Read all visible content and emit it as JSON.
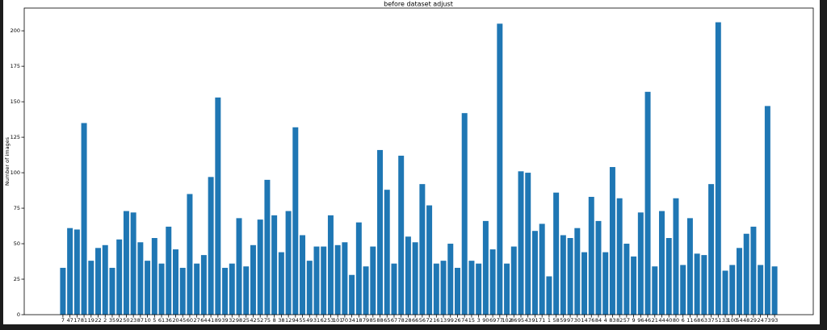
{
  "chart_data": {
    "type": "bar",
    "title": "before dataset adjust",
    "y_label": "Number of images",
    "categories": [
      "7",
      "47",
      "17",
      "81",
      "19",
      "22",
      "2",
      "35",
      "92",
      "50",
      "23",
      "87",
      "10",
      "5",
      "61",
      "36",
      "20",
      "45",
      "60",
      "27",
      "64",
      "41",
      "89",
      "39",
      "32",
      "98",
      "25",
      "42",
      "52",
      "75",
      "8",
      "38",
      "12",
      "94",
      "55",
      "49",
      "31",
      "62",
      "53",
      "101",
      "70",
      "34",
      "18",
      "79",
      "85",
      "88",
      "65",
      "67",
      "78",
      "28",
      "66",
      "56",
      "72",
      "16",
      "13",
      "99",
      "26",
      "74",
      "15",
      "3",
      "90",
      "69",
      "77",
      "102",
      "86",
      "95",
      "43",
      "91",
      "71",
      "1",
      "58",
      "59",
      "97",
      "30",
      "14",
      "76",
      "84",
      "4",
      "83",
      "82",
      "57",
      "9",
      "96",
      "46",
      "21",
      "44",
      "40",
      "80",
      "6",
      "11",
      "68",
      "63",
      "37",
      "51",
      "33",
      "100",
      "54",
      "48",
      "29",
      "24",
      "73",
      "93"
    ],
    "values": [
      33,
      61,
      60,
      135,
      38,
      47,
      49,
      33,
      53,
      73,
      72,
      51,
      38,
      54,
      36,
      62,
      46,
      33,
      85,
      36,
      42,
      97,
      153,
      33,
      36,
      68,
      34,
      49,
      67,
      95,
      70,
      44,
      73,
      132,
      56,
      38,
      48,
      48,
      70,
      49,
      51,
      28,
      65,
      34,
      48,
      116,
      88,
      36,
      112,
      55,
      51,
      92,
      77,
      36,
      38,
      50,
      33,
      142,
      38,
      36,
      66,
      46,
      205,
      36,
      48,
      101,
      100,
      59,
      64,
      27,
      86,
      56,
      54,
      61,
      44,
      83,
      66,
      44,
      104,
      82,
      50,
      41,
      72,
      157,
      34,
      73,
      54,
      82,
      35,
      68,
      43,
      42,
      92,
      206,
      31,
      35,
      47,
      57,
      62,
      35,
      147,
      34
    ],
    "color": "#1f77b4",
    "ylim": [
      0,
      216
    ],
    "yticks": [
      0,
      25,
      50,
      75,
      100,
      125,
      150,
      175,
      200
    ],
    "grid": false
  }
}
